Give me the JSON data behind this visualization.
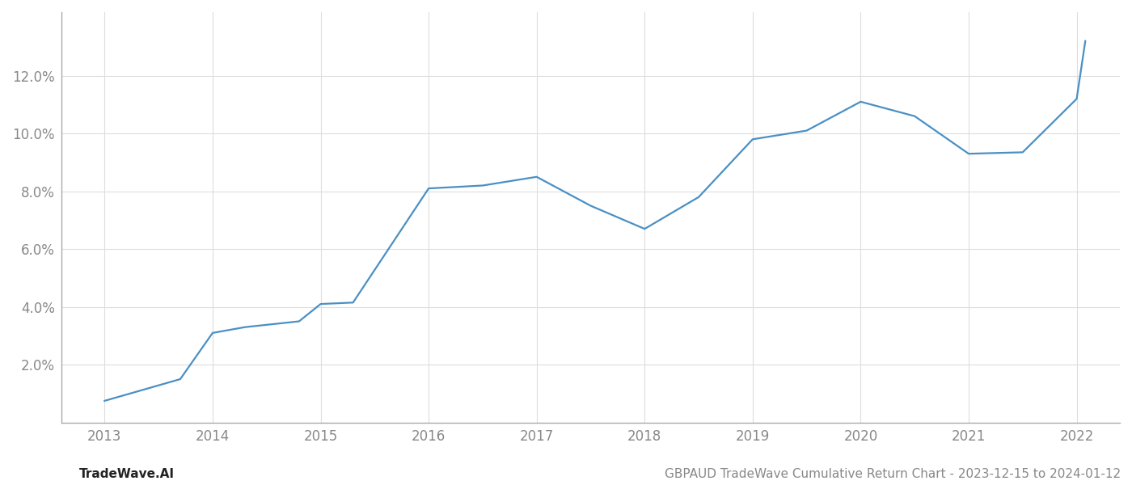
{
  "x": [
    2013,
    2013.7,
    2014,
    2014.3,
    2014.8,
    2015,
    2015.3,
    2016,
    2016.5,
    2017,
    2017.5,
    2018,
    2018.5,
    2019,
    2019.5,
    2020,
    2020.5,
    2021,
    2021.5,
    2022,
    2022.08
  ],
  "y": [
    0.75,
    1.5,
    3.1,
    3.3,
    3.5,
    4.1,
    4.15,
    8.1,
    8.2,
    8.5,
    7.5,
    6.7,
    7.8,
    9.8,
    10.1,
    11.1,
    10.6,
    9.3,
    9.35,
    11.2,
    13.2
  ],
  "line_color": "#4a90c4",
  "line_width": 1.6,
  "x_ticks": [
    2013,
    2014,
    2015,
    2016,
    2017,
    2018,
    2019,
    2020,
    2021,
    2022
  ],
  "x_tick_labels": [
    "2013",
    "2014",
    "2015",
    "2016",
    "2017",
    "2018",
    "2019",
    "2020",
    "2021",
    "2022"
  ],
  "y_ticks": [
    2.0,
    4.0,
    6.0,
    8.0,
    10.0,
    12.0
  ],
  "y_tick_labels": [
    "2.0%",
    "4.0%",
    "6.0%",
    "8.0%",
    "10.0%",
    "12.0%"
  ],
  "xlim": [
    2012.6,
    2022.4
  ],
  "ylim": [
    0.0,
    14.2
  ],
  "grid_color": "#dddddd",
  "bg_color": "#ffffff",
  "bottom_left_text": "TradeWave.AI",
  "bottom_right_text": "GBPAUD TradeWave Cumulative Return Chart - 2023-12-15 to 2024-01-12",
  "tick_label_color": "#888888",
  "bottom_left_color": "#222222",
  "bottom_right_color": "#888888",
  "bottom_fontsize": 11,
  "spine_color": "#aaaaaa"
}
